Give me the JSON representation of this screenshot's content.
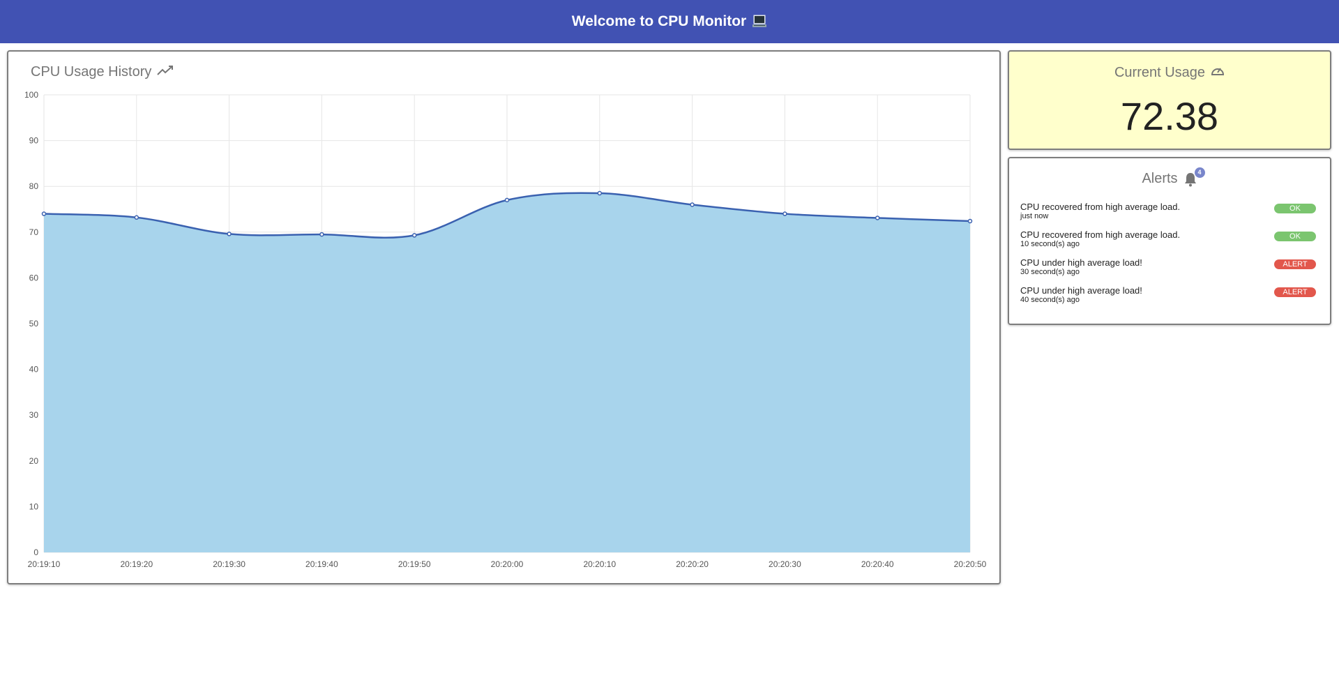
{
  "header": {
    "title": "Welcome to CPU Monitor",
    "icon": "laptop-icon"
  },
  "history": {
    "title": "CPU Usage History",
    "icon": "trending-up-icon",
    "chart_data": {
      "type": "area",
      "x": [
        "20:19:10",
        "20:19:20",
        "20:19:30",
        "20:19:40",
        "20:19:50",
        "20:20:00",
        "20:20:10",
        "20:20:20",
        "20:20:30",
        "20:20:40",
        "20:20:50"
      ],
      "series": [
        {
          "values": [
            74.0,
            73.2,
            69.6,
            69.5,
            69.3,
            77.0,
            78.5,
            76.0,
            74.0,
            73.1,
            72.4
          ]
        }
      ],
      "yticks": [
        "100",
        "90",
        "80",
        "70",
        "60",
        "50",
        "40",
        "30",
        "20",
        "10",
        "0"
      ],
      "ylim": [
        0,
        100
      ],
      "grid": true,
      "colors": {
        "line": "#3a61b0",
        "fill": "#a8d4ec"
      }
    }
  },
  "usage": {
    "title": "Current Usage",
    "icon": "speedometer-icon",
    "value": "72.38"
  },
  "alerts": {
    "title": "Alerts",
    "icon": "bell-icon",
    "count": "4",
    "items": [
      {
        "message": "CPU recovered from high average load.",
        "time": "just now",
        "status": "OK",
        "color": "#7bc56f"
      },
      {
        "message": "CPU recovered from high average load.",
        "time": "10 second(s) ago",
        "status": "OK",
        "color": "#7bc56f"
      },
      {
        "message": "CPU under high average load!",
        "time": "30 second(s) ago",
        "status": "ALERT",
        "color": "#e2574c"
      },
      {
        "message": "CPU under high average load!",
        "time": "40 second(s) ago",
        "status": "ALERT",
        "color": "#e2574c"
      }
    ]
  }
}
